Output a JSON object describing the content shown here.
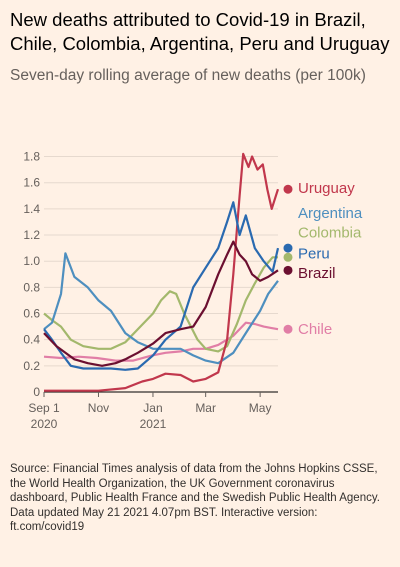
{
  "header": {
    "title": "New deaths attributed to Covid-19 in Brazil, Chile, Colombia, Argentina, Peru and Uruguay",
    "subtitle": "Seven-day rolling average of new deaths (per 100k)"
  },
  "footer": {
    "source": "Source: Financial Times analysis of data from the Johns Hopkins CSSE, the World Health Organization, the UK Government coronavirus dashboard, Public Health France and the Swedish Public Health Agency.",
    "updated": "Data updated May 21 2021 4.07pm BST. Interactive version: ft.com/covid19"
  },
  "chart_data": {
    "type": "line",
    "ylim": [
      0,
      1.85
    ],
    "yticks": [
      "0",
      "0.2",
      "0.4",
      "0.6",
      "0.8",
      "1.0",
      "1.2",
      "1.4",
      "1.6",
      "1.8"
    ],
    "xlim": [
      "2020-09-01",
      "2021-05-21"
    ],
    "xticks": [
      {
        "date": "2020-09-01",
        "label": "Sep 1",
        "sublabel": "2020"
      },
      {
        "date": "2020-11-01",
        "label": "Nov",
        "sublabel": ""
      },
      {
        "date": "2021-01-01",
        "label": "Jan",
        "sublabel": "2021"
      },
      {
        "date": "2021-03-01",
        "label": "Mar",
        "sublabel": ""
      },
      {
        "date": "2021-05-01",
        "label": "May",
        "sublabel": ""
      }
    ],
    "series": [
      {
        "name": "Chile",
        "color": "#e17ea6",
        "points": [
          [
            "2020-09-01",
            0.27
          ],
          [
            "2020-09-20",
            0.26
          ],
          [
            "2020-10-10",
            0.27
          ],
          [
            "2020-10-30",
            0.26
          ],
          [
            "2020-11-20",
            0.24
          ],
          [
            "2020-12-10",
            0.24
          ],
          [
            "2020-12-31",
            0.28
          ],
          [
            "2021-01-15",
            0.3
          ],
          [
            "2021-02-01",
            0.31
          ],
          [
            "2021-02-15",
            0.33
          ],
          [
            "2021-03-01",
            0.33
          ],
          [
            "2021-03-15",
            0.36
          ],
          [
            "2021-04-01",
            0.43
          ],
          [
            "2021-04-15",
            0.53
          ],
          [
            "2021-04-25",
            0.52
          ],
          [
            "2021-05-05",
            0.5
          ],
          [
            "2021-05-13",
            0.49
          ],
          [
            "2021-05-21",
            0.48
          ]
        ]
      },
      {
        "name": "Colombia",
        "color": "#a3b86c",
        "points": [
          [
            "2020-09-01",
            0.6
          ],
          [
            "2020-09-10",
            0.55
          ],
          [
            "2020-09-20",
            0.5
          ],
          [
            "2020-10-01",
            0.4
          ],
          [
            "2020-10-15",
            0.35
          ],
          [
            "2020-11-01",
            0.33
          ],
          [
            "2020-11-15",
            0.33
          ],
          [
            "2020-12-01",
            0.38
          ],
          [
            "2020-12-15",
            0.48
          ],
          [
            "2021-01-01",
            0.6
          ],
          [
            "2021-01-10",
            0.7
          ],
          [
            "2021-01-20",
            0.77
          ],
          [
            "2021-01-27",
            0.75
          ],
          [
            "2021-02-05",
            0.6
          ],
          [
            "2021-02-20",
            0.4
          ],
          [
            "2021-03-01",
            0.33
          ],
          [
            "2021-03-15",
            0.31
          ],
          [
            "2021-03-25",
            0.35
          ],
          [
            "2021-04-05",
            0.52
          ],
          [
            "2021-04-15",
            0.7
          ],
          [
            "2021-04-25",
            0.83
          ],
          [
            "2021-05-05",
            0.95
          ],
          [
            "2021-05-15",
            1.03
          ],
          [
            "2021-05-21",
            1.03
          ]
        ]
      },
      {
        "name": "Argentina",
        "color": "#4e8fbf",
        "points": [
          [
            "2020-09-01",
            0.48
          ],
          [
            "2020-09-10",
            0.53
          ],
          [
            "2020-09-20",
            0.75
          ],
          [
            "2020-09-25",
            1.06
          ],
          [
            "2020-10-05",
            0.88
          ],
          [
            "2020-10-20",
            0.8
          ],
          [
            "2020-11-01",
            0.7
          ],
          [
            "2020-11-15",
            0.62
          ],
          [
            "2020-12-01",
            0.45
          ],
          [
            "2020-12-15",
            0.38
          ],
          [
            "2021-01-01",
            0.33
          ],
          [
            "2021-01-15",
            0.33
          ],
          [
            "2021-02-01",
            0.33
          ],
          [
            "2021-02-15",
            0.28
          ],
          [
            "2021-03-01",
            0.24
          ],
          [
            "2021-03-15",
            0.22
          ],
          [
            "2021-04-01",
            0.3
          ],
          [
            "2021-04-15",
            0.45
          ],
          [
            "2021-05-01",
            0.62
          ],
          [
            "2021-05-10",
            0.75
          ],
          [
            "2021-05-21",
            0.85
          ]
        ]
      },
      {
        "name": "Uruguay",
        "color": "#c1374c",
        "points": [
          [
            "2020-09-01",
            0.01
          ],
          [
            "2020-10-01",
            0.01
          ],
          [
            "2020-11-01",
            0.01
          ],
          [
            "2020-12-01",
            0.03
          ],
          [
            "2020-12-20",
            0.08
          ],
          [
            "2021-01-01",
            0.1
          ],
          [
            "2021-01-15",
            0.14
          ],
          [
            "2021-02-01",
            0.13
          ],
          [
            "2021-02-15",
            0.08
          ],
          [
            "2021-03-01",
            0.1
          ],
          [
            "2021-03-15",
            0.15
          ],
          [
            "2021-03-25",
            0.4
          ],
          [
            "2021-04-01",
            0.9
          ],
          [
            "2021-04-08",
            1.5
          ],
          [
            "2021-04-12",
            1.82
          ],
          [
            "2021-04-18",
            1.72
          ],
          [
            "2021-04-22",
            1.8
          ],
          [
            "2021-04-28",
            1.7
          ],
          [
            "2021-05-04",
            1.74
          ],
          [
            "2021-05-09",
            1.55
          ],
          [
            "2021-05-14",
            1.4
          ],
          [
            "2021-05-21",
            1.55
          ]
        ]
      },
      {
        "name": "Peru",
        "color": "#2a6ab0",
        "points": [
          [
            "2020-09-01",
            0.48
          ],
          [
            "2020-09-10",
            0.4
          ],
          [
            "2020-09-20",
            0.3
          ],
          [
            "2020-10-01",
            0.2
          ],
          [
            "2020-10-15",
            0.18
          ],
          [
            "2020-11-01",
            0.18
          ],
          [
            "2020-11-15",
            0.18
          ],
          [
            "2020-12-01",
            0.17
          ],
          [
            "2020-12-15",
            0.18
          ],
          [
            "2021-01-01",
            0.28
          ],
          [
            "2021-01-15",
            0.4
          ],
          [
            "2021-02-01",
            0.5
          ],
          [
            "2021-02-15",
            0.8
          ],
          [
            "2021-03-01",
            0.95
          ],
          [
            "2021-03-15",
            1.1
          ],
          [
            "2021-03-25",
            1.3
          ],
          [
            "2021-04-01",
            1.45
          ],
          [
            "2021-04-08",
            1.2
          ],
          [
            "2021-04-15",
            1.35
          ],
          [
            "2021-04-25",
            1.1
          ],
          [
            "2021-05-05",
            1.0
          ],
          [
            "2021-05-15",
            0.92
          ],
          [
            "2021-05-21",
            1.1
          ]
        ]
      },
      {
        "name": "Brazil",
        "color": "#6b0f30",
        "points": [
          [
            "2020-09-01",
            0.45
          ],
          [
            "2020-09-08",
            0.4
          ],
          [
            "2020-09-15",
            0.35
          ],
          [
            "2020-09-25",
            0.3
          ],
          [
            "2020-10-05",
            0.25
          ],
          [
            "2020-10-20",
            0.22
          ],
          [
            "2020-11-05",
            0.2
          ],
          [
            "2020-11-20",
            0.22
          ],
          [
            "2020-12-01",
            0.25
          ],
          [
            "2020-12-15",
            0.3
          ],
          [
            "2021-01-01",
            0.37
          ],
          [
            "2021-01-15",
            0.45
          ],
          [
            "2021-02-01",
            0.48
          ],
          [
            "2021-02-15",
            0.5
          ],
          [
            "2021-03-01",
            0.65
          ],
          [
            "2021-03-15",
            0.9
          ],
          [
            "2021-03-25",
            1.05
          ],
          [
            "2021-04-01",
            1.15
          ],
          [
            "2021-04-08",
            1.05
          ],
          [
            "2021-04-15",
            1.0
          ],
          [
            "2021-04-22",
            0.9
          ],
          [
            "2021-05-01",
            0.85
          ],
          [
            "2021-05-10",
            0.88
          ],
          [
            "2021-05-21",
            0.93
          ]
        ]
      }
    ],
    "labels": [
      {
        "series": "Uruguay",
        "y": 1.55,
        "label_y": 1.56
      },
      {
        "series": "Argentina",
        "y": null,
        "label_y": 1.37
      },
      {
        "series": "Colombia",
        "y": 1.03,
        "label_y": 1.22
      },
      {
        "series": "Peru",
        "y": 1.1,
        "label_y": 1.06
      },
      {
        "series": "Brazil",
        "y": 0.93,
        "label_y": 0.91
      },
      {
        "series": "Chile",
        "y": 0.48,
        "label_y": 0.48
      }
    ]
  }
}
